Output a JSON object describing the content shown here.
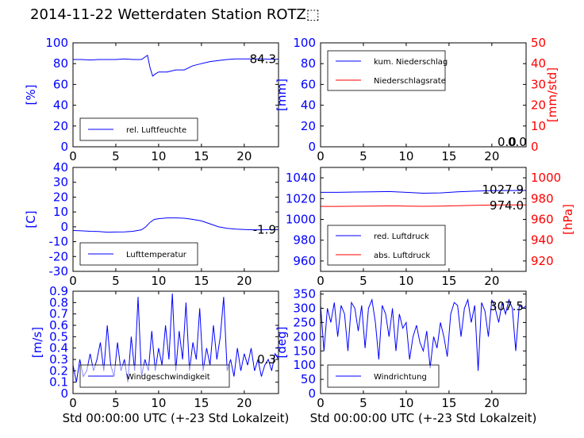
{
  "page": {
    "title": "2014-11-22 Wetterdaten Station ROTZ⬚"
  },
  "colors": {
    "left_axis": "#0000ff",
    "right_axis": "#ff0000",
    "frame": "#000000"
  },
  "chart_data": [
    {
      "id": "humidity",
      "type": "line",
      "ylabel": "[%]",
      "xlim": [
        0,
        24
      ],
      "ylim": [
        0,
        100
      ],
      "xticks": [
        0,
        5,
        10,
        15,
        20
      ],
      "yticks": [
        0,
        20,
        40,
        60,
        80,
        100
      ],
      "series": [
        {
          "name": "rel. Luftfeuchte",
          "color": "#0000ff",
          "x": [
            0,
            1,
            2,
            3,
            4,
            5,
            6,
            7,
            8,
            8.7,
            9.0,
            9.3,
            9.6,
            10,
            11,
            12,
            13,
            14,
            15,
            16,
            17,
            18,
            19,
            20,
            21,
            22,
            23,
            24
          ],
          "y": [
            84,
            84,
            83.5,
            84,
            84,
            84,
            84.5,
            84,
            84,
            88,
            76,
            68,
            70,
            72,
            72,
            74,
            74,
            78,
            80,
            82,
            83,
            84,
            84.5,
            84.5,
            84.5,
            84.5,
            84.3,
            84.3
          ]
        }
      ],
      "value_label": "84.3",
      "legend": "lower-left"
    },
    {
      "id": "precip",
      "type": "line",
      "ylabel": "[mm]",
      "ylabel_right": "[mm/std]",
      "xlim": [
        0,
        24
      ],
      "ylim": [
        0,
        100
      ],
      "ylim_right": [
        0,
        50
      ],
      "xticks": [
        0,
        5,
        10,
        15,
        20
      ],
      "yticks": [
        0,
        20,
        40,
        60,
        80,
        100
      ],
      "yticks_right": [
        0,
        10,
        20,
        30,
        40,
        50
      ],
      "series": [
        {
          "name": "kum. Niederschlag",
          "color": "#0000ff",
          "axis": "left",
          "x": [
            0,
            24
          ],
          "y": [
            0,
            0
          ]
        },
        {
          "name": "Niederschlagsrate",
          "color": "#ff0000",
          "axis": "right",
          "x": [
            0,
            24
          ],
          "y": [
            0,
            0
          ]
        }
      ],
      "value_labels": [
        "0.0",
        "0.0"
      ],
      "legend": "upper-left"
    },
    {
      "id": "temperature",
      "type": "line",
      "ylabel": "[C]",
      "xlim": [
        0,
        24
      ],
      "ylim": [
        -30,
        40
      ],
      "xticks": [
        0,
        5,
        10,
        15,
        20
      ],
      "yticks": [
        -30,
        -20,
        -10,
        0,
        10,
        20,
        30,
        40
      ],
      "series": [
        {
          "name": "Lufttemperatur",
          "color": "#0000ff",
          "x": [
            0,
            1,
            2,
            3,
            4,
            5,
            6,
            7,
            8,
            8.5,
            9,
            9.5,
            10,
            11,
            12,
            13,
            14,
            15,
            16,
            17,
            18,
            19,
            20,
            21,
            22,
            23,
            24
          ],
          "y": [
            -2.5,
            -2.7,
            -3,
            -3.2,
            -3.6,
            -3.5,
            -3.4,
            -3,
            -2,
            0,
            3,
            5,
            5.5,
            6,
            6,
            5.8,
            5,
            4,
            2,
            0,
            -1,
            -1.5,
            -1.8,
            -2,
            -2,
            -1.9,
            -1.9
          ]
        }
      ],
      "value_label": "-1.9",
      "legend": "lower-left"
    },
    {
      "id": "pressure",
      "type": "line",
      "ylabel": "[hPa]",
      "xlim": [
        0,
        24
      ],
      "ylim": [
        950,
        1050
      ],
      "ylim_right": [
        910,
        1010
      ],
      "xticks": [
        0,
        5,
        10,
        15,
        20
      ],
      "yticks": [
        960,
        980,
        1000,
        1020,
        1040
      ],
      "yticks_right": [
        920,
        940,
        960,
        980,
        1000
      ],
      "series": [
        {
          "name": "red. Luftdruck",
          "color": "#0000ff",
          "axis": "left",
          "x": [
            0,
            2,
            4,
            6,
            8,
            10,
            12,
            14,
            16,
            18,
            20,
            22,
            24
          ],
          "y": [
            1026,
            1026,
            1026.3,
            1026.5,
            1026.8,
            1026,
            1025.2,
            1025.5,
            1026.5,
            1027.2,
            1027.6,
            1027.8,
            1027.9
          ]
        },
        {
          "name": "abs. Luftdruck",
          "color": "#ff0000",
          "axis": "right",
          "x": [
            0,
            2,
            4,
            6,
            8,
            10,
            12,
            14,
            16,
            18,
            20,
            22,
            24
          ],
          "y": [
            972.5,
            972.5,
            972.7,
            972.8,
            973,
            972.8,
            972.6,
            972.8,
            973.2,
            973.6,
            973.8,
            974,
            974
          ]
        }
      ],
      "value_labels": [
        "1027.9",
        "974.0"
      ],
      "legend": "lower-left"
    },
    {
      "id": "windspeed",
      "type": "line",
      "xlabel": "Std 00:00:00 UTC (+-23 Std Lokalzeit)",
      "ylabel": "[m/s]",
      "xlim": [
        0,
        24
      ],
      "ylim": [
        0,
        0.9
      ],
      "xticks": [
        0,
        5,
        10,
        15,
        20
      ],
      "yticks": [
        0,
        0.1,
        0.2,
        0.3,
        0.4,
        0.5,
        0.6,
        0.7,
        0.8,
        0.9
      ],
      "series": [
        {
          "name": "Windgeschwindigkeit",
          "color": "#0000ff",
          "x": [
            0,
            0.4,
            0.8,
            1.2,
            1.6,
            2,
            2.4,
            2.8,
            3.2,
            3.6,
            4,
            4.4,
            4.8,
            5.2,
            5.6,
            6,
            6.4,
            6.8,
            7.2,
            7.6,
            8,
            8.4,
            8.8,
            9.2,
            9.6,
            10,
            10.4,
            10.8,
            11.2,
            11.6,
            12,
            12.4,
            12.8,
            13.2,
            13.6,
            14,
            14.4,
            14.8,
            15.2,
            15.6,
            16,
            16.4,
            16.8,
            17.2,
            17.6,
            18,
            18.4,
            18.8,
            19.2,
            19.6,
            20,
            20.4,
            20.8,
            21.2,
            21.6,
            22,
            22.4,
            22.8,
            23.2,
            23.6,
            24
          ],
          "y": [
            0.25,
            0.1,
            0.3,
            0.15,
            0.2,
            0.35,
            0.2,
            0.3,
            0.45,
            0.2,
            0.6,
            0.25,
            0.15,
            0.45,
            0.2,
            0.3,
            0.1,
            0.5,
            0.2,
            0.85,
            0.15,
            0.3,
            0.2,
            0.55,
            0.2,
            0.4,
            0.25,
            0.6,
            0.3,
            0.88,
            0.2,
            0.55,
            0.3,
            0.8,
            0.2,
            0.45,
            0.3,
            0.75,
            0.2,
            0.4,
            0.25,
            0.6,
            0.3,
            0.5,
            0.85,
            0.2,
            0.3,
            0.15,
            0.4,
            0.2,
            0.35,
            0.25,
            0.4,
            0.2,
            0.3,
            0.15,
            0.25,
            0.3,
            0.2,
            0.35,
            0.3
          ]
        }
      ],
      "value_label": "0.3",
      "legend": "lower-left"
    },
    {
      "id": "winddir",
      "type": "line",
      "xlabel": "Std 00:00:00 UTC (+-23 Std Lokalzeit)",
      "ylabel": "[deg]",
      "xlim": [
        0,
        24
      ],
      "ylim": [
        0,
        360
      ],
      "xticks": [
        0,
        5,
        10,
        15,
        20
      ],
      "yticks": [
        0,
        50,
        100,
        150,
        200,
        250,
        300,
        350
      ],
      "series": [
        {
          "name": "Windrichtung",
          "color": "#0000ff",
          "x": [
            0,
            0.4,
            0.8,
            1.2,
            1.6,
            2,
            2.4,
            2.8,
            3.2,
            3.6,
            4,
            4.4,
            4.8,
            5.2,
            5.6,
            6,
            6.4,
            6.8,
            7.2,
            7.6,
            8,
            8.4,
            8.8,
            9.2,
            9.6,
            10,
            10.4,
            10.8,
            11.2,
            11.6,
            12,
            12.4,
            12.8,
            13.2,
            13.6,
            14,
            14.4,
            14.8,
            15.2,
            15.6,
            16,
            16.4,
            16.8,
            17.2,
            17.6,
            18,
            18.4,
            18.8,
            19.2,
            19.6,
            20,
            20.4,
            20.8,
            21.2,
            21.6,
            22,
            22.4,
            22.8,
            23.2,
            23.6,
            24
          ],
          "y": [
            310,
            150,
            300,
            250,
            320,
            200,
            310,
            280,
            150,
            320,
            300,
            220,
            310,
            160,
            300,
            330,
            250,
            120,
            310,
            280,
            200,
            300,
            150,
            280,
            230,
            250,
            120,
            200,
            240,
            180,
            150,
            220,
            90,
            200,
            160,
            250,
            200,
            130,
            280,
            320,
            310,
            200,
            300,
            330,
            250,
            310,
            80,
            320,
            290,
            200,
            330,
            300,
            250,
            320,
            280,
            330,
            300,
            150,
            310,
            300,
            307.5
          ]
        }
      ],
      "value_label": "307.5",
      "legend": "lower-left"
    }
  ]
}
